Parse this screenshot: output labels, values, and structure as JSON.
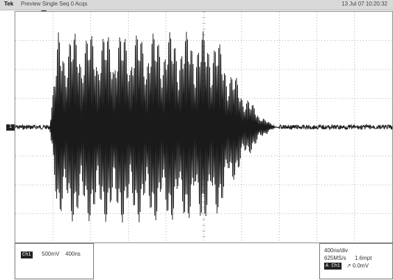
{
  "header": {
    "brand": "Tek",
    "mode": "Preview  Single Seq 0 Acqs",
    "timestamp": "13 Jul 07 10:20:32"
  },
  "channel_marker": "1",
  "channel_box": {
    "channel_tag": "Ch1",
    "vertical_scale": "500mV",
    "time_value": "400ns"
  },
  "timebase_box": {
    "time_per_div": "400ns/div",
    "sample_rate": "625MS/s",
    "record_points": "1.6mpt",
    "trigger_source_tag": "A Ch1",
    "trigger_level": "↗ 0.0mV"
  },
  "chart_data": {
    "type": "line",
    "title": "",
    "xlabel": "",
    "ylabel": "",
    "grid": true,
    "x_divisions": 10,
    "y_divisions": 8,
    "signal": {
      "baseline_div": 0,
      "burst_start_div": 0.9,
      "burst_end_div": 7.0,
      "envelope_peak_div": 3.3,
      "peak_count": 13,
      "noise_div": 0.08
    }
  }
}
